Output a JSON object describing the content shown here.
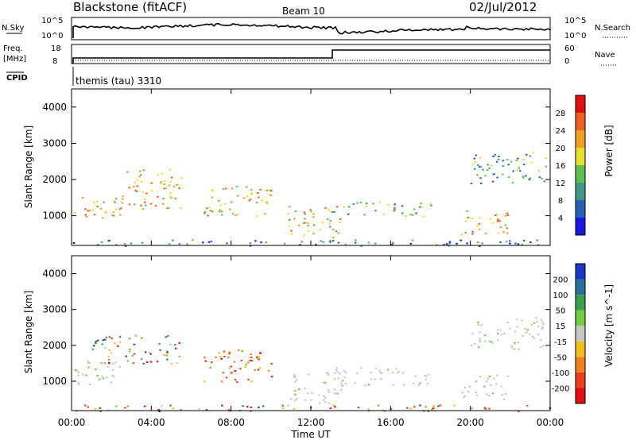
{
  "header": {
    "title": "Blackstone (fitACF)",
    "beam": "Beam 10",
    "date": "02/Jul/2012"
  },
  "meta_panels": {
    "nsky_label": "N.Sky",
    "nsearch_label": "N.Search",
    "noise_ticks_left": [
      "10^5",
      "10^0"
    ],
    "noise_ticks_right": [
      "10^5",
      "10^0"
    ],
    "freq_label": "Freq.",
    "freq_unit": "[MHz]",
    "freq_ticks": [
      "18",
      "8"
    ],
    "nave_label": "Nave",
    "nave_ticks": [
      "60",
      "0"
    ],
    "cpid_label": "CPID",
    "cpid_value": "themis (tau) 3310"
  },
  "chart_data": [
    {
      "type": "heatmap",
      "name": "power",
      "ylabel": "Slant Range [km]",
      "y_ticks": [
        "1000",
        "2000",
        "3000",
        "4000"
      ],
      "ylim": [
        180,
        4500
      ],
      "xlim_hours": [
        0,
        24
      ],
      "colorbar": {
        "label": "Power [dB]",
        "ticks": [
          "4",
          "8",
          "12",
          "16",
          "20",
          "24",
          "28"
        ],
        "colors": [
          "#1818e0",
          "#2a5fb8",
          "#3d9a8a",
          "#60c050",
          "#e8e030",
          "#f0a020",
          "#ef6020",
          "#e01010"
        ]
      },
      "echo_regions": [
        {
          "t0": 0.1,
          "t1": 2.5,
          "r0": 900,
          "r1": 1600,
          "level": "high"
        },
        {
          "t0": 2.5,
          "t1": 5.5,
          "r0": 1200,
          "r1": 2300,
          "level": "high"
        },
        {
          "t0": 6.6,
          "t1": 10.0,
          "r0": 1000,
          "r1": 1900,
          "level": "high"
        },
        {
          "t0": 10.8,
          "t1": 13.5,
          "r0": 400,
          "r1": 1300,
          "level": "high"
        },
        {
          "t0": 13.0,
          "t1": 18.0,
          "r0": 1000,
          "r1": 1400,
          "level": "medium"
        },
        {
          "t0": 19.5,
          "t1": 22.0,
          "r0": 500,
          "r1": 1200,
          "level": "high"
        },
        {
          "t0": 20.0,
          "t1": 24.0,
          "r0": 1900,
          "r1": 2800,
          "level": "medium"
        },
        {
          "t0": 0.0,
          "t1": 24.0,
          "r0": 180,
          "r1": 350,
          "level": "low"
        }
      ]
    },
    {
      "type": "heatmap",
      "name": "velocity",
      "ylabel": "Slant Range [km]",
      "y_ticks": [
        "1000",
        "2000",
        "3000",
        "4000"
      ],
      "ylim": [
        180,
        4500
      ],
      "xlim_hours": [
        0,
        24
      ],
      "xlabel": "Time UT",
      "x_ticks": [
        "00:00",
        "04:00",
        "08:00",
        "12:00",
        "16:00",
        "20:00",
        "00:00"
      ],
      "colorbar": {
        "label": "Velocity [m s^-1]",
        "ticks": [
          "200",
          "100",
          "50",
          "15",
          "-15",
          "-50",
          "-100",
          "-200"
        ],
        "colors": [
          "#1838c8",
          "#2a70a0",
          "#38a050",
          "#70d040",
          "#c8c8c0",
          "#f0c020",
          "#f08020",
          "#e84020",
          "#e01010"
        ]
      },
      "echo_regions": [
        {
          "t0": 0.1,
          "t1": 2.5,
          "r0": 900,
          "r1": 1600,
          "level": "ground"
        },
        {
          "t0": 1.0,
          "t1": 5.5,
          "r0": 1500,
          "r1": 2300,
          "level": "mixed"
        },
        {
          "t0": 6.6,
          "t1": 10.0,
          "r0": 1000,
          "r1": 1900,
          "level": "negative"
        },
        {
          "t0": 10.8,
          "t1": 13.5,
          "r0": 400,
          "r1": 1300,
          "level": "ground"
        },
        {
          "t0": 13.0,
          "t1": 18.0,
          "r0": 900,
          "r1": 1400,
          "level": "ground"
        },
        {
          "t0": 19.5,
          "t1": 22.0,
          "r0": 500,
          "r1": 1200,
          "level": "ground"
        },
        {
          "t0": 20.0,
          "t1": 24.0,
          "r0": 1900,
          "r1": 2800,
          "level": "ground"
        },
        {
          "t0": 0.0,
          "t1": 24.0,
          "r0": 180,
          "r1": 350,
          "level": "mixed"
        }
      ]
    }
  ]
}
